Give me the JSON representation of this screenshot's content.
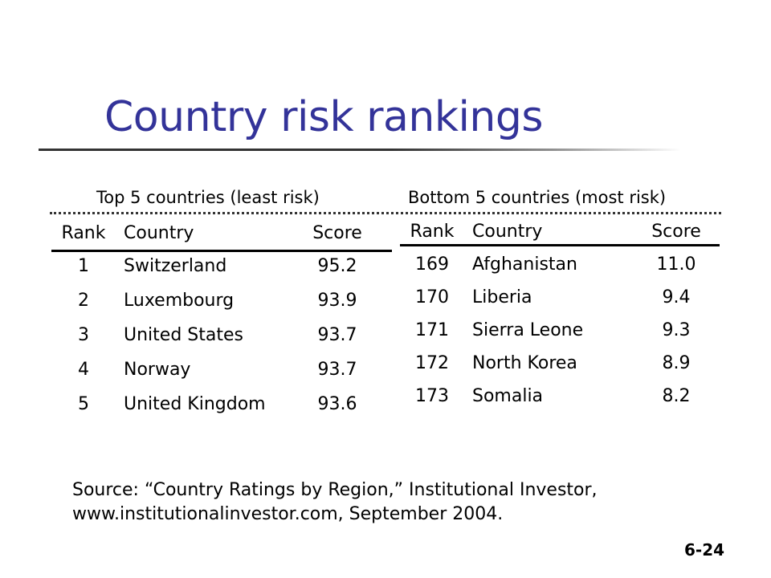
{
  "title": "Country risk rankings",
  "colors": {
    "title": "#333399",
    "text": "#000000",
    "rule": "#333333"
  },
  "left_table": {
    "caption": "Top 5 countries (least risk)",
    "headers": [
      "Rank",
      "Country",
      "Score"
    ],
    "rows": [
      [
        "1",
        "Switzerland",
        "95.2"
      ],
      [
        "2",
        "Luxembourg",
        "93.9"
      ],
      [
        "3",
        "United States",
        "93.7"
      ],
      [
        "4",
        "Norway",
        "93.7"
      ],
      [
        "5",
        "United Kingdom",
        "93.6"
      ]
    ]
  },
  "right_table": {
    "caption": "Bottom 5 countries (most risk)",
    "headers": [
      "Rank",
      "Country",
      "Score"
    ],
    "rows": [
      [
        "169",
        "Afghanistan",
        "11.0"
      ],
      [
        "170",
        "Liberia",
        "9.4"
      ],
      [
        "171",
        "Sierra Leone",
        "9.3"
      ],
      [
        "172",
        "North Korea",
        "8.9"
      ],
      [
        "173",
        "Somalia",
        "8.2"
      ]
    ]
  },
  "source": {
    "line1": "Source:  “Country Ratings by Region,” Institutional Investor,",
    "line2": "www.institutionalinvestor.com, September 2004."
  },
  "page_number": "6-24"
}
